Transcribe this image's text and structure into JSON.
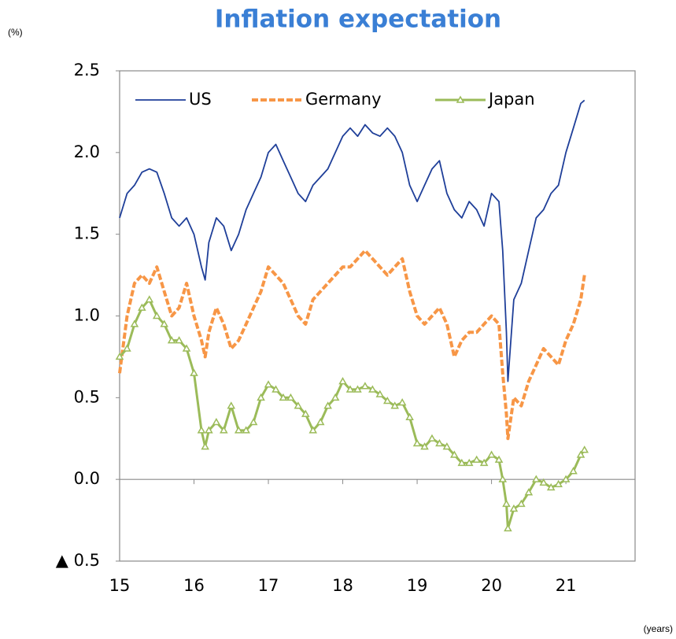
{
  "chart_data": {
    "type": "line",
    "title": "Inflation expectation",
    "y_unit": "(%)",
    "x_unit": "(years)",
    "x": [
      15.0,
      15.1,
      15.2,
      15.3,
      15.4,
      15.5,
      15.6,
      15.7,
      15.8,
      15.9,
      16.0,
      16.1,
      16.15,
      16.2,
      16.3,
      16.4,
      16.5,
      16.6,
      16.7,
      16.8,
      16.9,
      17.0,
      17.1,
      17.2,
      17.3,
      17.4,
      17.5,
      17.6,
      17.7,
      17.8,
      17.9,
      18.0,
      18.1,
      18.2,
      18.3,
      18.4,
      18.5,
      18.6,
      18.7,
      18.8,
      18.9,
      19.0,
      19.1,
      19.2,
      19.3,
      19.4,
      19.5,
      19.6,
      19.7,
      19.8,
      19.9,
      20.0,
      20.1,
      20.15,
      20.2,
      20.22,
      20.3,
      20.4,
      20.5,
      20.6,
      20.7,
      20.8,
      20.9,
      21.0,
      21.1,
      21.2,
      21.25
    ],
    "series": [
      {
        "name": "US",
        "color": "#1f3f99",
        "dash": false,
        "marker": null,
        "values": [
          1.6,
          1.75,
          1.8,
          1.88,
          1.9,
          1.88,
          1.75,
          1.6,
          1.55,
          1.6,
          1.5,
          1.3,
          1.22,
          1.45,
          1.6,
          1.55,
          1.4,
          1.5,
          1.65,
          1.75,
          1.85,
          2.0,
          2.05,
          1.95,
          1.85,
          1.75,
          1.7,
          1.8,
          1.85,
          1.9,
          2.0,
          2.1,
          2.15,
          2.1,
          2.17,
          2.12,
          2.1,
          2.15,
          2.1,
          2.0,
          1.8,
          1.7,
          1.8,
          1.9,
          1.95,
          1.75,
          1.65,
          1.6,
          1.7,
          1.65,
          1.55,
          1.75,
          1.7,
          1.4,
          0.9,
          0.6,
          1.1,
          1.2,
          1.4,
          1.6,
          1.65,
          1.75,
          1.8,
          2.0,
          2.15,
          2.3,
          2.32
        ]
      },
      {
        "name": "Germany",
        "color": "#f79646",
        "dash": true,
        "marker": null,
        "values": [
          0.65,
          1.0,
          1.2,
          1.25,
          1.2,
          1.3,
          1.15,
          1.0,
          1.05,
          1.2,
          1.0,
          0.85,
          0.75,
          0.9,
          1.05,
          0.95,
          0.8,
          0.85,
          0.95,
          1.05,
          1.15,
          1.3,
          1.25,
          1.2,
          1.1,
          1.0,
          0.95,
          1.1,
          1.15,
          1.2,
          1.25,
          1.3,
          1.3,
          1.35,
          1.4,
          1.35,
          1.3,
          1.25,
          1.3,
          1.35,
          1.15,
          1.0,
          0.95,
          1.0,
          1.05,
          0.95,
          0.75,
          0.85,
          0.9,
          0.9,
          0.95,
          1.0,
          0.95,
          0.65,
          0.4,
          0.25,
          0.5,
          0.45,
          0.6,
          0.7,
          0.8,
          0.75,
          0.7,
          0.85,
          0.95,
          1.1,
          1.25
        ]
      },
      {
        "name": "Japan",
        "color": "#9bbb59",
        "dash": false,
        "marker": "triangle",
        "values": [
          0.75,
          0.8,
          0.95,
          1.05,
          1.1,
          1.0,
          0.95,
          0.85,
          0.85,
          0.8,
          0.65,
          0.3,
          0.2,
          0.3,
          0.35,
          0.3,
          0.45,
          0.3,
          0.3,
          0.35,
          0.5,
          0.58,
          0.55,
          0.5,
          0.5,
          0.45,
          0.4,
          0.3,
          0.35,
          0.45,
          0.5,
          0.6,
          0.55,
          0.55,
          0.57,
          0.55,
          0.52,
          0.48,
          0.45,
          0.47,
          0.38,
          0.22,
          0.2,
          0.25,
          0.22,
          0.2,
          0.15,
          0.1,
          0.1,
          0.12,
          0.1,
          0.15,
          0.12,
          0.0,
          -0.15,
          -0.3,
          -0.18,
          -0.15,
          -0.08,
          0.0,
          -0.02,
          -0.05,
          -0.03,
          0.0,
          0.05,
          0.15,
          0.18
        ]
      }
    ],
    "xlim": [
      15,
      21.93
    ],
    "xticks": [
      15,
      16,
      17,
      18,
      19,
      20,
      21
    ],
    "ylim": [
      -0.5,
      2.5
    ],
    "yticks": [
      {
        "value": -0.5,
        "label": "▲ 0.5"
      },
      {
        "value": 0,
        "label": "0.0"
      },
      0.5,
      {
        "value": 1,
        "label": "1.0"
      },
      1.5,
      {
        "value": 2,
        "label": "2.0"
      },
      2.5
    ],
    "zero_line": true,
    "legend": "top-left"
  }
}
